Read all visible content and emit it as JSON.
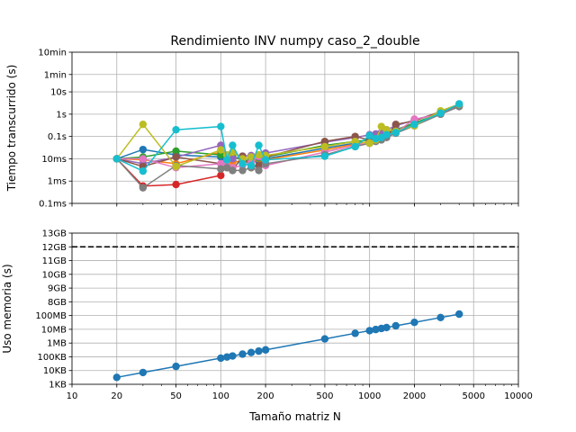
{
  "chart_data": [
    {
      "type": "line",
      "title": "Rendimiento INV numpy caso_2_double",
      "xlabel": "",
      "ylabel": "Tiempo transcurrido (s)",
      "xscale": "log",
      "yscale": "log",
      "xlim": [
        10,
        10000
      ],
      "ylim": [
        0.0001,
        600
      ],
      "grid": true,
      "y_ticks": [
        {
          "v": 0.0001,
          "label": "0.1ms"
        },
        {
          "v": 0.001,
          "label": "1ms"
        },
        {
          "v": 0.01,
          "label": "10ms"
        },
        {
          "v": 0.1,
          "label": "0.1s"
        },
        {
          "v": 1,
          "label": "1s"
        },
        {
          "v": 10,
          "label": "10s"
        },
        {
          "v": 60,
          "label": "1min"
        },
        {
          "v": 600,
          "label": "10min"
        }
      ],
      "series": [
        {
          "color": "#1f77b4",
          "x": [
            20,
            30,
            50,
            100,
            110,
            120,
            140,
            160,
            180,
            200,
            500,
            800,
            1000,
            1100,
            1200,
            1300,
            1500,
            2000,
            3000,
            4000
          ],
          "y": [
            0.01,
            0.026,
            0.015,
            0.012,
            0.006,
            0.008,
            0.007,
            0.009,
            0.008,
            0.01,
            0.03,
            0.05,
            0.08,
            0.09,
            0.11,
            0.13,
            0.18,
            0.4,
            1.1,
            2.6
          ]
        },
        {
          "color": "#ff7f0e",
          "x": [
            20,
            30,
            50,
            100,
            110,
            120,
            140,
            160,
            180,
            200,
            500,
            800,
            1000,
            1100,
            1200,
            1300,
            1500,
            2000,
            3000,
            4000
          ],
          "y": [
            0.01,
            0.009,
            0.006,
            0.02,
            0.009,
            0.007,
            0.008,
            0.007,
            0.01,
            0.009,
            0.025,
            0.045,
            0.06,
            0.08,
            0.1,
            0.12,
            0.17,
            0.35,
            1.0,
            2.4
          ]
        },
        {
          "color": "#2ca02c",
          "x": [
            20,
            30,
            50,
            100,
            110,
            120,
            140,
            160,
            180,
            200,
            500,
            800,
            1000,
            1100,
            1200,
            1300,
            1500,
            2000,
            3000,
            4000
          ],
          "y": [
            0.01,
            0.012,
            0.022,
            0.015,
            0.01,
            0.012,
            0.009,
            0.008,
            0.011,
            0.012,
            0.04,
            0.06,
            0.07,
            0.09,
            0.12,
            0.14,
            0.2,
            0.4,
            1.1,
            2.5
          ]
        },
        {
          "color": "#d62728",
          "x": [
            20,
            30,
            50,
            100
          ],
          "y": [
            0.01,
            0.0006,
            0.0007,
            0.0018
          ]
        },
        {
          "color": "#9467bd",
          "x": [
            20,
            30,
            50,
            100,
            110,
            120,
            140,
            160,
            180,
            200,
            500,
            800,
            1000,
            1100,
            1200,
            1300,
            1500,
            2000,
            3000,
            4000
          ],
          "y": [
            0.01,
            0.006,
            0.012,
            0.04,
            0.012,
            0.01,
            0.013,
            0.014,
            0.012,
            0.018,
            0.055,
            0.09,
            0.12,
            0.13,
            0.15,
            0.2,
            0.3,
            0.55,
            1.2,
            2.8
          ]
        },
        {
          "color": "#8c564b",
          "x": [
            20,
            30,
            50,
            100,
            110,
            120,
            140,
            160,
            180,
            200,
            500,
            800,
            1000,
            1100,
            1200,
            1300,
            1500,
            2000,
            3000,
            4000
          ],
          "y": [
            0.01,
            0.0045,
            0.012,
            0.006,
            0.004,
            0.003,
            0.013,
            0.004,
            0.005,
            0.012,
            0.06,
            0.1,
            0.07,
            0.08,
            0.09,
            0.1,
            0.35,
            0.5,
            1.3,
            2.6
          ]
        },
        {
          "color": "#e377c2",
          "x": [
            20,
            30,
            50,
            100,
            110,
            120,
            140,
            160,
            180,
            200,
            500,
            800,
            1000,
            1100,
            1200,
            1300,
            1500,
            2000,
            3000,
            4000
          ],
          "y": [
            0.01,
            0.01,
            0.004,
            0.006,
            0.005,
            0.004,
            0.005,
            0.007,
            0.013,
            0.005,
            0.02,
            0.04,
            0.05,
            0.07,
            0.08,
            0.1,
            0.15,
            0.6,
            1.0,
            2.3
          ]
        },
        {
          "color": "#7f7f7f",
          "x": [
            20,
            30,
            50,
            100,
            110,
            120,
            140,
            160,
            180,
            200,
            500,
            800,
            1000,
            1100,
            1200,
            1300,
            1500,
            2000,
            3000,
            4000
          ],
          "y": [
            0.01,
            0.0005,
            0.005,
            0.0035,
            0.004,
            0.003,
            0.003,
            0.004,
            0.003,
            0.006,
            0.015,
            0.035,
            0.05,
            0.06,
            0.07,
            0.09,
            0.14,
            0.3,
            1.0,
            2.2
          ]
        },
        {
          "color": "#bcbd22",
          "x": [
            20,
            30,
            50,
            100,
            110,
            120,
            140,
            160,
            180,
            200,
            500,
            800,
            1000,
            1100,
            1200,
            1300,
            1500,
            2000,
            3000,
            4000
          ],
          "y": [
            0.01,
            0.35,
            0.0045,
            0.025,
            0.015,
            0.02,
            0.01,
            0.012,
            0.015,
            0.014,
            0.035,
            0.06,
            0.05,
            0.07,
            0.28,
            0.2,
            0.17,
            0.3,
            1.4,
            2.8
          ]
        },
        {
          "color": "#17becf",
          "x": [
            20,
            30,
            50,
            100,
            110,
            120,
            140,
            160,
            180,
            200,
            500,
            800,
            1000,
            1100,
            1200,
            1300,
            1500,
            2000,
            3000,
            4000
          ],
          "y": [
            0.01,
            0.0028,
            0.2,
            0.28,
            0.009,
            0.04,
            0.006,
            0.005,
            0.04,
            0.009,
            0.013,
            0.035,
            0.11,
            0.08,
            0.09,
            0.12,
            0.15,
            0.35,
            1.1,
            2.9
          ]
        }
      ]
    },
    {
      "type": "line",
      "title": "",
      "xlabel": "Tamaño matriz N",
      "ylabel": "Uso memoria (s)",
      "xscale": "log",
      "xlim": [
        10,
        10000
      ],
      "grid": true,
      "x_ticks": [
        {
          "v": 10,
          "label": "10"
        },
        {
          "v": 20,
          "label": "20"
        },
        {
          "v": 50,
          "label": "50"
        },
        {
          "v": 100,
          "label": "100"
        },
        {
          "v": 200,
          "label": "200"
        },
        {
          "v": 500,
          "label": "500"
        },
        {
          "v": 1000,
          "label": "1000"
        },
        {
          "v": 2000,
          "label": "2000"
        },
        {
          "v": 5000,
          "label": "5000"
        },
        {
          "v": 10000,
          "label": "10000"
        }
      ],
      "y_ticks": [
        "1KB",
        "10KB",
        "100KB",
        "1MB",
        "10MB",
        "100MB",
        "8GB",
        "9GB",
        "10GB",
        "11GB",
        "12GB",
        "13GB"
      ],
      "reference_line": {
        "label": "12GB",
        "style": "dashed",
        "color": "#000000"
      },
      "series": [
        {
          "color": "#1f77b4",
          "x": [
            20,
            30,
            50,
            100,
            110,
            120,
            140,
            160,
            180,
            200,
            500,
            800,
            1000,
            1100,
            1200,
            1300,
            1500,
            2000,
            3000,
            4000
          ],
          "y_bytes": [
            3200,
            7200,
            20000,
            80000,
            96800,
            115200,
            156800,
            204800,
            259200,
            320000,
            2000000,
            5120000,
            8000000,
            9680000,
            11520000,
            13520000,
            18000000,
            32000000,
            72000000,
            128000000
          ]
        }
      ]
    }
  ]
}
